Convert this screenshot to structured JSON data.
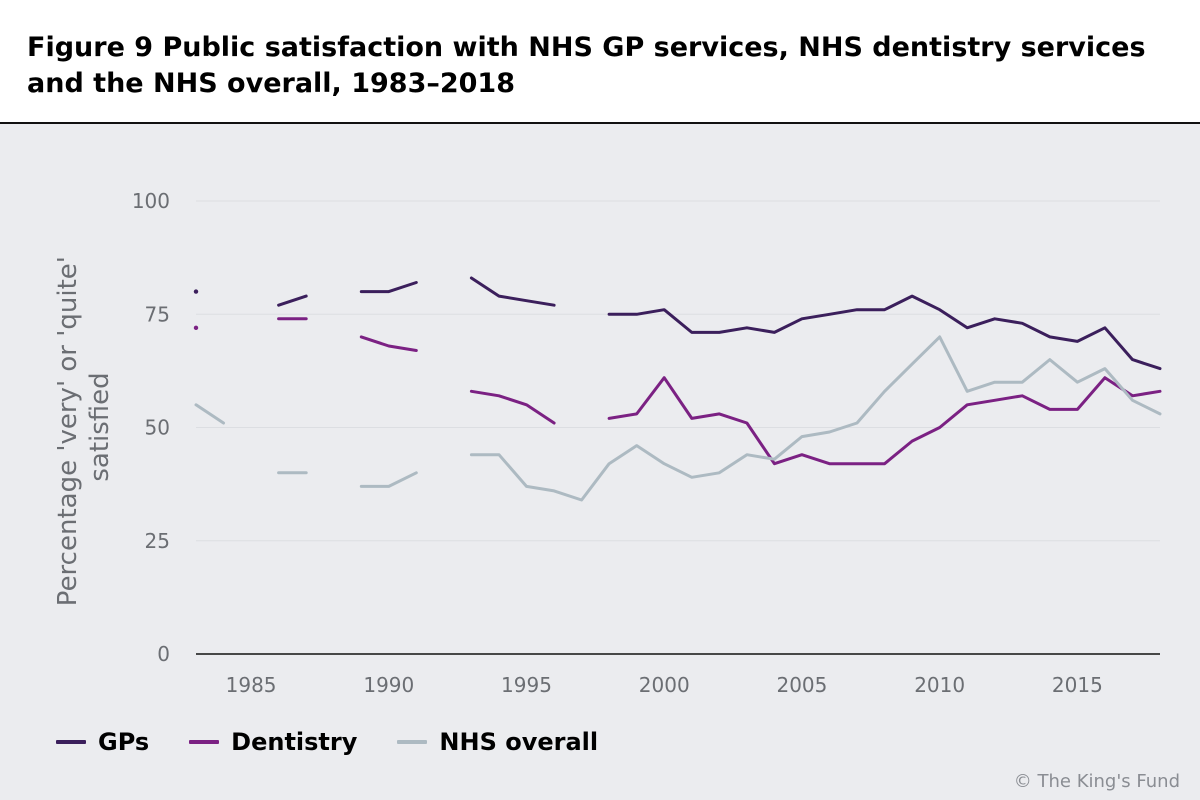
{
  "figure": {
    "title": "Figure 9 Public satisfaction with NHS GP services, NHS dentistry services and the NHS overall, 1983–2018",
    "credit": "© The King's Fund"
  },
  "colors": {
    "background": "#ebecef",
    "gridline": "#dcdee2",
    "axis_text": "#6b6e73",
    "gps": "#3b1f5c",
    "dentistry": "#7b2183",
    "nhs_overall": "#adbac2"
  },
  "chart_data": {
    "type": "line",
    "title": "Figure 9 Public satisfaction with NHS GP services, NHS dentistry services and the NHS overall, 1983–2018",
    "xlabel": "",
    "ylabel": "Percentage 'very' or 'quite' satisfied",
    "ylabel_lines": [
      "Percentage 'very' or 'quite'",
      "satisfied"
    ],
    "xlim": [
      1983,
      2018
    ],
    "ylim": [
      0,
      100
    ],
    "x_ticks": [
      1985,
      1990,
      1995,
      2000,
      2005,
      2010,
      2015
    ],
    "y_ticks": [
      0,
      25,
      50,
      75,
      100
    ],
    "grid": true,
    "legend_position": "bottom-left",
    "x": [
      1983,
      1984,
      1985,
      1986,
      1987,
      1988,
      1989,
      1990,
      1991,
      1992,
      1993,
      1994,
      1995,
      1996,
      1997,
      1998,
      1999,
      2000,
      2001,
      2002,
      2003,
      2004,
      2005,
      2006,
      2007,
      2008,
      2009,
      2010,
      2011,
      2012,
      2013,
      2014,
      2015,
      2016,
      2017,
      2018
    ],
    "series": [
      {
        "name": "GPs",
        "color": "#3b1f5c",
        "values": [
          80,
          null,
          null,
          77,
          79,
          null,
          80,
          80,
          82,
          null,
          83,
          79,
          78,
          77,
          null,
          75,
          75,
          76,
          71,
          71,
          72,
          71,
          74,
          75,
          76,
          76,
          79,
          76,
          72,
          74,
          73,
          70,
          69,
          72,
          65,
          63
        ]
      },
      {
        "name": "Dentistry",
        "color": "#7b2183",
        "values": [
          72,
          null,
          null,
          74,
          74,
          null,
          70,
          68,
          67,
          null,
          58,
          57,
          55,
          51,
          null,
          52,
          53,
          61,
          52,
          53,
          51,
          42,
          44,
          42,
          42,
          42,
          47,
          50,
          55,
          56,
          57,
          54,
          54,
          61,
          57,
          58
        ]
      },
      {
        "name": "NHS overall",
        "color": "#adbac2",
        "values": [
          55,
          51,
          null,
          40,
          40,
          null,
          37,
          37,
          40,
          null,
          44,
          44,
          37,
          36,
          34,
          42,
          46,
          42,
          39,
          40,
          44,
          43,
          48,
          49,
          51,
          58,
          64,
          70,
          58,
          60,
          60,
          65,
          60,
          63,
          56,
          53
        ]
      }
    ]
  }
}
